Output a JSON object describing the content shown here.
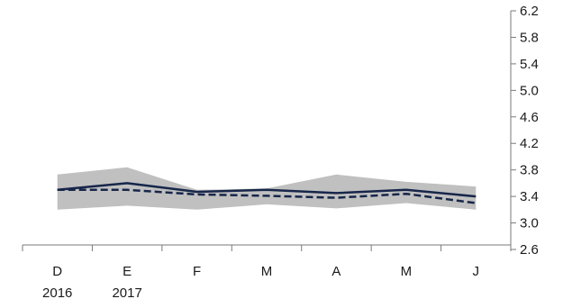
{
  "chart_data": {
    "type": "line",
    "title": "",
    "xlabel": "",
    "ylabel": "",
    "categories": [
      "D",
      "E",
      "F",
      "M",
      "A",
      "M",
      "J"
    ],
    "year_labels": [
      "2016",
      "2017",
      "",
      "",
      "",
      "",
      ""
    ],
    "y_axis_position": "right",
    "ylim": [
      2.6,
      6.2
    ],
    "yticks": [
      2.6,
      3.0,
      3.4,
      3.8,
      4.2,
      4.6,
      5.0,
      5.4,
      5.8,
      6.2
    ],
    "ytick_labels": [
      "2.6",
      "3.0",
      "3.4",
      "3.8",
      "4.2",
      "4.6",
      "5.0",
      "5.4",
      "5.8",
      "6.2"
    ],
    "grid": false,
    "legend": "none",
    "band": {
      "lower": [
        3.2,
        3.26,
        3.2,
        3.28,
        3.22,
        3.3,
        3.2
      ],
      "upper": [
        3.73,
        3.84,
        3.5,
        3.52,
        3.73,
        3.62,
        3.55
      ]
    },
    "series": [
      {
        "style": "solid",
        "values": [
          3.5,
          3.6,
          3.47,
          3.5,
          3.45,
          3.5,
          3.4
        ]
      },
      {
        "style": "dashed",
        "values": [
          3.5,
          3.5,
          3.43,
          3.41,
          3.38,
          3.44,
          3.3
        ]
      }
    ],
    "colors": {
      "band": "#c0c0c0",
      "line": "#17264a",
      "axis": "#7a7a7a"
    }
  }
}
